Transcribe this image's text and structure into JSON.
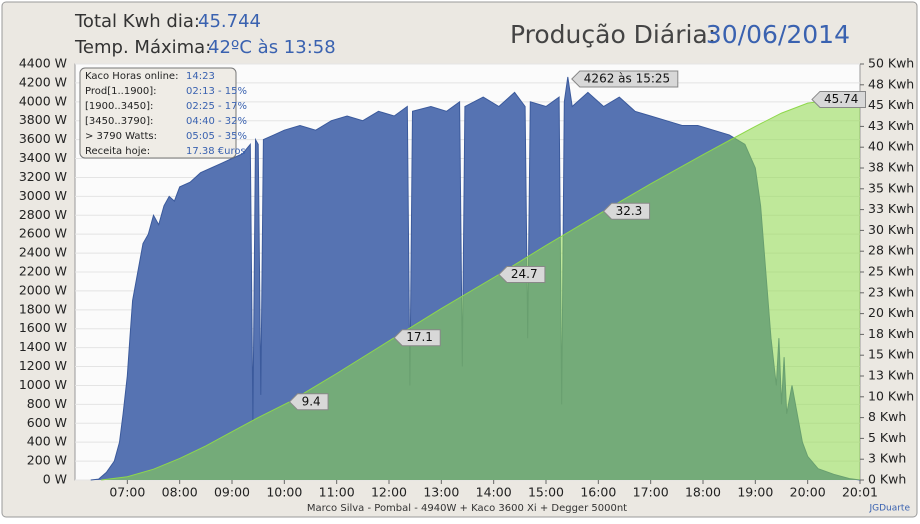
{
  "header": {
    "total_label": "Total Kwh dia:",
    "total_value": "45.744",
    "temp_label": "Temp. Máxima:",
    "temp_value": "42ºC às 13:58"
  },
  "info_box": {
    "rows": [
      [
        "Kaco Horas online:",
        "14:23"
      ],
      [
        "Prod[1..1900]:",
        "02:13 - 15%"
      ],
      [
        "[1900..3450]:",
        "02:25 - 17%"
      ],
      [
        "[3450..3790]:",
        "04:40 - 32%"
      ],
      [
        "> 3790 Watts:",
        "05:05 - 35%"
      ],
      [
        "Receita hoje:",
        "17.38 €uros"
      ]
    ]
  },
  "footer": "Marco Silva - Pombal - 4940W + Kaco 3600 Xi + Degger 5000nt",
  "credit": "JGDuarte",
  "chart_data": {
    "type": "area",
    "title": "Produção Diária:",
    "date": "30/06/2014",
    "max_label": "4262 às 15:25",
    "xlim": [
      6,
      21
    ],
    "xticks": [
      {
        "value": 7,
        "label": "07:00"
      },
      {
        "value": 8,
        "label": "08:00"
      },
      {
        "value": 9,
        "label": "09:00"
      },
      {
        "value": 10,
        "label": "10:00"
      },
      {
        "value": 11,
        "label": "11:00"
      },
      {
        "value": 12,
        "label": "12:00"
      },
      {
        "value": 13,
        "label": "13:00"
      },
      {
        "value": 14,
        "label": "14:00"
      },
      {
        "value": 15,
        "label": "15:00"
      },
      {
        "value": 16,
        "label": "16:00"
      },
      {
        "value": 17,
        "label": "17:00"
      },
      {
        "value": 18,
        "label": "18:00"
      },
      {
        "value": 19,
        "label": "19:00"
      },
      {
        "value": 20,
        "label": "20:00"
      },
      {
        "value": 21,
        "label": "20:01"
      }
    ],
    "ylim": [
      0,
      4400
    ],
    "yticks": [
      {
        "value": 0,
        "label": "0 W"
      },
      {
        "value": 200,
        "label": "200 W"
      },
      {
        "value": 400,
        "label": "400 W"
      },
      {
        "value": 600,
        "label": "600 W"
      },
      {
        "value": 800,
        "label": "800 W"
      },
      {
        "value": 1000,
        "label": "1000 W"
      },
      {
        "value": 1200,
        "label": "1200 W"
      },
      {
        "value": 1400,
        "label": "1400 W"
      },
      {
        "value": 1600,
        "label": "1600 W"
      },
      {
        "value": 1800,
        "label": "1800 W"
      },
      {
        "value": 2000,
        "label": "2000 W"
      },
      {
        "value": 2200,
        "label": "2200 W"
      },
      {
        "value": 2400,
        "label": "2400 W"
      },
      {
        "value": 2600,
        "label": "2600 W"
      },
      {
        "value": 2800,
        "label": "2800 W"
      },
      {
        "value": 3000,
        "label": "3000 W"
      },
      {
        "value": 3200,
        "label": "3200 W"
      },
      {
        "value": 3400,
        "label": "3400 W"
      },
      {
        "value": 3600,
        "label": "3600 W"
      },
      {
        "value": 3800,
        "label": "3800 W"
      },
      {
        "value": 4000,
        "label": "4000 W"
      },
      {
        "value": 4200,
        "label": "4200 W"
      },
      {
        "value": 4400,
        "label": "4400 W"
      }
    ],
    "y2lim": [
      0,
      50
    ],
    "y2ticks": [
      {
        "value": 0,
        "label": "0 Kwh"
      },
      {
        "value": 2.5,
        "label": "3 Kwh"
      },
      {
        "value": 5,
        "label": "5 Kwh"
      },
      {
        "value": 7.5,
        "label": "8 Kwh"
      },
      {
        "value": 10,
        "label": "10 Kwh"
      },
      {
        "value": 12.5,
        "label": "13 Kwh"
      },
      {
        "value": 15,
        "label": "15 Kwh"
      },
      {
        "value": 17.5,
        "label": "18 Kwh"
      },
      {
        "value": 20,
        "label": "20 Kwh"
      },
      {
        "value": 22.5,
        "label": "23 Kwh"
      },
      {
        "value": 25,
        "label": "25 Kwh"
      },
      {
        "value": 27.5,
        "label": "28 Kwh"
      },
      {
        "value": 30,
        "label": "30 Kwh"
      },
      {
        "value": 32.5,
        "label": "33 Kwh"
      },
      {
        "value": 35,
        "label": "35 Kwh"
      },
      {
        "value": 37.5,
        "label": "38 Kwh"
      },
      {
        "value": 40,
        "label": "40 Kwh"
      },
      {
        "value": 42.5,
        "label": "43 Kwh"
      },
      {
        "value": 45,
        "label": "45 Kwh"
      },
      {
        "value": 47.5,
        "label": "48 Kwh"
      },
      {
        "value": 50,
        "label": "50 Kwh"
      }
    ],
    "grid": true,
    "series": [
      {
        "color": "#5673b2",
        "axis": "y",
        "x": [
          6.3,
          6.45,
          6.6,
          6.75,
          6.85,
          6.92,
          7.0,
          7.05,
          7.1,
          7.2,
          7.3,
          7.4,
          7.5,
          7.6,
          7.7,
          7.8,
          7.9,
          8.0,
          8.2,
          8.4,
          8.6,
          8.8,
          9.0,
          9.2,
          9.35,
          9.4,
          9.45,
          9.5,
          9.55,
          9.6,
          9.8,
          10.0,
          10.3,
          10.6,
          10.9,
          11.2,
          11.5,
          11.8,
          12.1,
          12.35,
          12.4,
          12.45,
          12.8,
          13.1,
          13.35,
          13.4,
          13.45,
          13.8,
          14.1,
          14.4,
          14.6,
          14.65,
          14.7,
          15.0,
          15.25,
          15.3,
          15.35,
          15.4167,
          15.5,
          15.8,
          16.1,
          16.4,
          16.7,
          17.0,
          17.3,
          17.6,
          17.9,
          18.2,
          18.5,
          18.8,
          19.0,
          19.1,
          19.2,
          19.3,
          19.4,
          19.45,
          19.5,
          19.55,
          19.6,
          19.7,
          19.8,
          19.9,
          20.0,
          20.2,
          20.5,
          20.8,
          21.0
        ],
        "values": [
          0,
          10,
          80,
          200,
          400,
          700,
          1100,
          1500,
          1900,
          2200,
          2500,
          2600,
          2800,
          2700,
          2900,
          3000,
          2950,
          3100,
          3150,
          3250,
          3300,
          3350,
          3400,
          3450,
          3550,
          620,
          3600,
          3550,
          900,
          3600,
          3650,
          3700,
          3750,
          3700,
          3800,
          3850,
          3800,
          3900,
          3850,
          3950,
          1000,
          3900,
          3950,
          3900,
          4000,
          1200,
          3950,
          4050,
          3950,
          4100,
          3950,
          1500,
          4000,
          3950,
          4050,
          800,
          4000,
          4262,
          3950,
          4100,
          3950,
          4050,
          3900,
          3850,
          3800,
          3750,
          3750,
          3700,
          3650,
          3550,
          3300,
          2900,
          2200,
          1500,
          1000,
          1500,
          800,
          1300,
          700,
          1000,
          700,
          400,
          250,
          120,
          60,
          15,
          0
        ]
      },
      {
        "color": "#8ed84a",
        "axis": "y2",
        "x": [
          6.5,
          7.0,
          7.5,
          8.0,
          8.5,
          9.0,
          9.5,
          10.1,
          11.0,
          12.1,
          13.0,
          14.1,
          15.0,
          16.1,
          17.0,
          18.0,
          18.5,
          19.0,
          19.5,
          20.0,
          20.5,
          21.0
        ],
        "values": [
          0,
          0.4,
          1.3,
          2.6,
          4.1,
          5.8,
          7.5,
          9.4,
          12.8,
          17.1,
          20.6,
          24.7,
          28.2,
          32.3,
          35.6,
          39.1,
          40.8,
          42.5,
          44.1,
          45.3,
          45.7,
          45.74
        ],
        "value_labels": [
          null,
          null,
          null,
          null,
          null,
          null,
          null,
          "9.4",
          null,
          "17.1",
          null,
          "24.7",
          null,
          "32.3",
          null,
          null,
          null,
          null,
          null,
          null,
          null,
          "45.74"
        ]
      }
    ]
  }
}
